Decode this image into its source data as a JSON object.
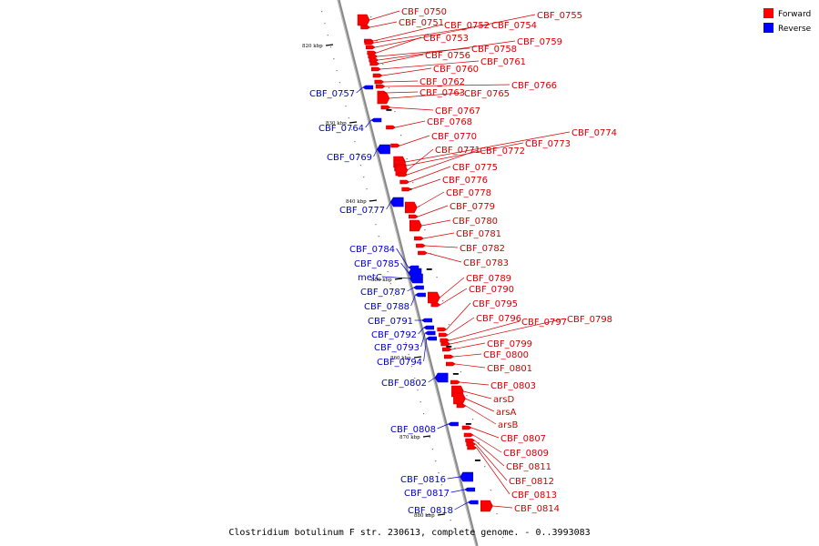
{
  "legend": {
    "forward_label": "Forward",
    "reverse_label": "Reverse",
    "forward_color": "#ff0000",
    "reverse_color": "#0000ff"
  },
  "caption": "Clostridium botulinum F str. 230613, complete genome. - 0..3993083",
  "ruler_labels": [
    "820 kbp",
    "830 kbp",
    "840 kbp",
    "850 kbp",
    "860 kbp",
    "870 kbp",
    "880 kbp"
  ],
  "forward_genes": [
    "CBF_0750",
    "CBF_0751",
    "CBF_0752",
    "CBF_0754",
    "CBF_0755",
    "CBF_0753",
    "CBF_0758",
    "CBF_0759",
    "CBF_0756",
    "CBF_0761",
    "CBF_0760",
    "CBF_0762",
    "CBF_0766",
    "CBF_0763",
    "CBF_0765",
    "CBF_0767",
    "CBF_0768",
    "CBF_0770",
    "CBF_0774",
    "CBF_0773",
    "CBF_0771",
    "CBF_0772",
    "CBF_0775",
    "CBF_0776",
    "CBF_0778",
    "CBF_0779",
    "CBF_0780",
    "CBF_0781",
    "CBF_0782",
    "CBF_0783",
    "CBF_0789",
    "CBF_0790",
    "CBF_0795",
    "CBF_0796",
    "CBF_0797",
    "CBF_0798",
    "CBF_0799",
    "CBF_0800",
    "CBF_0801",
    "CBF_0803",
    "arsD",
    "arsA",
    "arsB",
    "CBF_0807",
    "CBF_0809",
    "CBF_0811",
    "CBF_0812",
    "CBF_0813",
    "CBF_0814"
  ],
  "reverse_genes": [
    "CBF_0757",
    "CBF_0764",
    "CBF_0769",
    "CBF_0777",
    "CBF_0784",
    "CBF_0785",
    "metC",
    "CBF_0787",
    "CBF_0788",
    "CBF_0791",
    "CBF_0792",
    "CBF_0793",
    "CBF_0794",
    "CBF_0802",
    "CBF_0808",
    "CBF_0816",
    "CBF_0817",
    "CBF_0818"
  ]
}
